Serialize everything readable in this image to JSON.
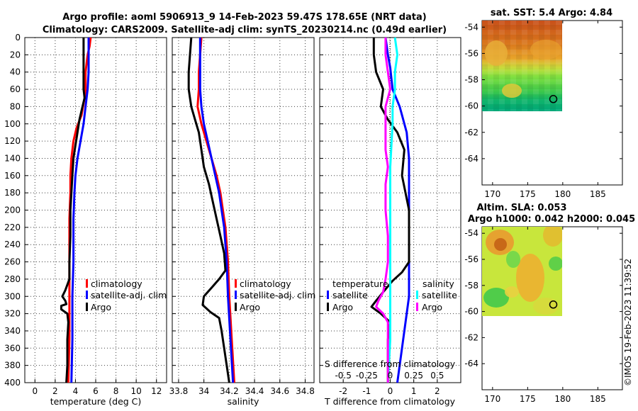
{
  "header": {
    "title_line1": "Argo profile: aoml 5906913_9 14-Feb-2023 59.47S 178.65E (NRT data)",
    "title_line2": "Climatology: CARS2009. Satellite-adj clim: synTS_20230214.nc (0.49d earlier)",
    "credit": "©IMOS 19-Feb-2023 11:39:52"
  },
  "colors": {
    "climatology": "#ff0000",
    "satellite": "#0000ff",
    "argo": "#000000",
    "salinity_satellite": "#00ffff",
    "salinity_argo": "#ff00ff"
  },
  "chart_data": [
    {
      "id": "temperature",
      "type": "line",
      "xlabel": "temperature (deg C)",
      "ylabel": "",
      "xlim": [
        -1,
        13
      ],
      "ylim": [
        400,
        0
      ],
      "xticks": [
        "0",
        "2",
        "4",
        "6",
        "8",
        "10",
        "12"
      ],
      "xtick_values": [
        0,
        2,
        4,
        6,
        8,
        10,
        12
      ],
      "yticks": [
        "0",
        "20",
        "40",
        "60",
        "80",
        "100",
        "120",
        "140",
        "160",
        "180",
        "200",
        "220",
        "240",
        "260",
        "280",
        "300",
        "320",
        "340",
        "360",
        "380",
        "400"
      ],
      "legend": [
        "climatology",
        "satellite-adj. clim",
        "Argo"
      ],
      "series": [
        {
          "name": "climatology",
          "color": "#ff0000",
          "points": [
            [
              5.5,
              0
            ],
            [
              5.4,
              10
            ],
            [
              5.2,
              20
            ],
            [
              5.0,
              40
            ],
            [
              5.0,
              60
            ],
            [
              4.9,
              70
            ],
            [
              4.6,
              90
            ],
            [
              4.1,
              105
            ],
            [
              3.8,
              120
            ],
            [
              3.6,
              140
            ],
            [
              3.5,
              160
            ],
            [
              3.5,
              180
            ],
            [
              3.4,
              210
            ],
            [
              3.4,
              260
            ],
            [
              3.4,
              300
            ],
            [
              3.4,
              350
            ],
            [
              3.3,
              400
            ]
          ]
        },
        {
          "name": "satellite-adj. clim",
          "color": "#0000ff",
          "points": [
            [
              5.3,
              0
            ],
            [
              5.3,
              20
            ],
            [
              5.3,
              40
            ],
            [
              5.2,
              60
            ],
            [
              5.0,
              80
            ],
            [
              4.8,
              100
            ],
            [
              4.5,
              120
            ],
            [
              4.2,
              140
            ],
            [
              4.0,
              160
            ],
            [
              3.9,
              180
            ],
            [
              3.8,
              210
            ],
            [
              3.8,
              260
            ],
            [
              3.7,
              300
            ],
            [
              3.7,
              350
            ],
            [
              3.6,
              400
            ]
          ]
        },
        {
          "name": "Argo",
          "color": "#000000",
          "points": [
            [
              4.8,
              0
            ],
            [
              4.8,
              20
            ],
            [
              4.8,
              40
            ],
            [
              4.8,
              60
            ],
            [
              4.9,
              70
            ],
            [
              4.7,
              80
            ],
            [
              4.4,
              95
            ],
            [
              4.2,
              110
            ],
            [
              4.0,
              125
            ],
            [
              3.8,
              140
            ],
            [
              3.7,
              160
            ],
            [
              3.6,
              180
            ],
            [
              3.5,
              200
            ],
            [
              3.5,
              230
            ],
            [
              3.4,
              260
            ],
            [
              3.4,
              280
            ],
            [
              3.0,
              293
            ],
            [
              2.7,
              300
            ],
            [
              3.0,
              305
            ],
            [
              3.1,
              309
            ],
            [
              2.6,
              311
            ],
            [
              2.6,
              315
            ],
            [
              3.2,
              320
            ],
            [
              3.3,
              330
            ],
            [
              3.2,
              350
            ],
            [
              3.2,
              380
            ],
            [
              3.1,
              400
            ]
          ]
        }
      ]
    },
    {
      "id": "salinity",
      "type": "line",
      "xlabel": "salinity",
      "xlim": [
        33.75,
        34.87
      ],
      "ylim": [
        400,
        0
      ],
      "xticks": [
        "33.8",
        "34",
        "34.2",
        "34.4",
        "34.6",
        "34.8"
      ],
      "xtick_values": [
        33.8,
        34.0,
        34.2,
        34.4,
        34.6,
        34.8
      ],
      "legend": [
        "climatology",
        "satellite-adj. clim",
        "Argo"
      ],
      "series": [
        {
          "name": "climatology",
          "color": "#ff0000",
          "points": [
            [
              33.98,
              0
            ],
            [
              33.97,
              20
            ],
            [
              33.96,
              40
            ],
            [
              33.96,
              60
            ],
            [
              33.95,
              80
            ],
            [
              33.98,
              100
            ],
            [
              34.02,
              120
            ],
            [
              34.06,
              140
            ],
            [
              34.1,
              160
            ],
            [
              34.13,
              180
            ],
            [
              34.15,
              200
            ],
            [
              34.17,
              220
            ],
            [
              34.18,
              240
            ],
            [
              34.19,
              260
            ],
            [
              34.2,
              300
            ],
            [
              34.22,
              350
            ],
            [
              34.24,
              400
            ]
          ]
        },
        {
          "name": "satellite-adj. clim",
          "color": "#0000ff",
          "points": [
            [
              33.97,
              0
            ],
            [
              33.97,
              40
            ],
            [
              33.97,
              60
            ],
            [
              33.98,
              80
            ],
            [
              34.0,
              100
            ],
            [
              34.03,
              120
            ],
            [
              34.06,
              140
            ],
            [
              34.09,
              160
            ],
            [
              34.12,
              180
            ],
            [
              34.14,
              200
            ],
            [
              34.16,
              220
            ],
            [
              34.17,
              240
            ],
            [
              34.18,
              260
            ],
            [
              34.19,
              300
            ],
            [
              34.21,
              350
            ],
            [
              34.23,
              400
            ]
          ]
        },
        {
          "name": "Argo",
          "color": "#000000",
          "points": [
            [
              33.9,
              0
            ],
            [
              33.89,
              20
            ],
            [
              33.88,
              40
            ],
            [
              33.88,
              60
            ],
            [
              33.9,
              80
            ],
            [
              33.93,
              95
            ],
            [
              33.96,
              110
            ],
            [
              33.98,
              130
            ],
            [
              34.0,
              150
            ],
            [
              34.04,
              170
            ],
            [
              34.07,
              190
            ],
            [
              34.1,
              210
            ],
            [
              34.13,
              230
            ],
            [
              34.16,
              250
            ],
            [
              34.17,
              270
            ],
            [
              34.12,
              280
            ],
            [
              34.06,
              290
            ],
            [
              34.0,
              300
            ],
            [
              33.99,
              310
            ],
            [
              34.05,
              318
            ],
            [
              34.12,
              325
            ],
            [
              34.14,
              340
            ],
            [
              34.16,
              360
            ],
            [
              34.18,
              380
            ],
            [
              34.2,
              400
            ]
          ]
        }
      ]
    },
    {
      "id": "difference",
      "type": "line",
      "xlabel": "T difference from climatology",
      "top_axis_label": "S difference from climatology",
      "xlim": [
        -3,
        3
      ],
      "ylim": [
        400,
        0
      ],
      "xticks": [
        "-2",
        "-1",
        "0",
        "1",
        "2"
      ],
      "xtick_values": [
        -2,
        -1,
        0,
        1,
        2
      ],
      "sticks": [
        "-0.5",
        "-0.25",
        "0",
        "0.25",
        "0.5"
      ],
      "stick_values": [
        -2,
        -1,
        0,
        1,
        2
      ],
      "legend_groups": [
        {
          "title": "temperature",
          "items": [
            "satellite",
            "Argo"
          ]
        },
        {
          "title": "salinity",
          "items": [
            "satellite",
            "Argo"
          ]
        }
      ],
      "series": [
        {
          "name": "temperature satellite",
          "color": "#0000ff",
          "points": [
            [
              -0.2,
              0
            ],
            [
              -0.1,
              20
            ],
            [
              0.0,
              35
            ],
            [
              0.1,
              60
            ],
            [
              0.4,
              80
            ],
            [
              0.7,
              110
            ],
            [
              0.8,
              140
            ],
            [
              0.8,
              180
            ],
            [
              0.8,
              220
            ],
            [
              0.8,
              260
            ],
            [
              0.8,
              300
            ],
            [
              0.6,
              340
            ],
            [
              0.4,
              380
            ],
            [
              0.3,
              400
            ]
          ]
        },
        {
          "name": "temperature Argo",
          "color": "#000000",
          "points": [
            [
              -0.7,
              0
            ],
            [
              -0.7,
              20
            ],
            [
              -0.6,
              40
            ],
            [
              -0.3,
              60
            ],
            [
              -0.4,
              80
            ],
            [
              -0.1,
              95
            ],
            [
              0.3,
              110
            ],
            [
              0.6,
              130
            ],
            [
              0.5,
              160
            ],
            [
              0.8,
              200
            ],
            [
              0.8,
              240
            ],
            [
              0.8,
              260
            ],
            [
              0.5,
              272
            ],
            [
              0.1,
              282
            ],
            [
              -0.3,
              295
            ],
            [
              -0.6,
              305
            ],
            [
              -0.8,
              312
            ],
            [
              -0.4,
              320
            ],
            [
              0.0,
              330
            ],
            [
              -0.1,
              350
            ],
            [
              -0.1,
              380
            ],
            [
              -0.1,
              400
            ]
          ]
        },
        {
          "name": "salinity satellite",
          "color": "#00ffff",
          "points": [
            [
              0.2,
              0
            ],
            [
              0.3,
              20
            ],
            [
              0.2,
              40
            ],
            [
              0.2,
              60
            ],
            [
              0.1,
              80
            ],
            [
              0.1,
              100
            ],
            [
              0.0,
              150
            ],
            [
              0.0,
              200
            ],
            [
              0.0,
              250
            ],
            [
              0.0,
              300
            ],
            [
              0.0,
              350
            ],
            [
              -0.1,
              400
            ]
          ]
        },
        {
          "name": "salinity Argo",
          "color": "#ff00ff",
          "points": [
            [
              -0.2,
              0
            ],
            [
              -0.2,
              20
            ],
            [
              -0.1,
              40
            ],
            [
              0.0,
              60
            ],
            [
              -0.2,
              80
            ],
            [
              -0.2,
              100
            ],
            [
              -0.2,
              130
            ],
            [
              -0.1,
              150
            ],
            [
              -0.2,
              170
            ],
            [
              -0.2,
              200
            ],
            [
              -0.1,
              230
            ],
            [
              -0.1,
              260
            ],
            [
              -0.2,
              280
            ],
            [
              -0.3,
              295
            ],
            [
              -0.5,
              305
            ],
            [
              -0.6,
              312
            ],
            [
              -0.3,
              320
            ],
            [
              -0.1,
              330
            ],
            [
              -0.1,
              360
            ],
            [
              -0.1,
              400
            ]
          ]
        }
      ]
    },
    {
      "id": "sst_map",
      "type": "heatmap",
      "title": "sat. SST: 5.4 Argo: 4.84",
      "xticks": [
        "170",
        "175",
        "180",
        "185"
      ],
      "xtick_values": [
        170,
        175,
        180,
        185
      ],
      "yticks": [
        "-54",
        "-56",
        "-58",
        "-60",
        "-62",
        "-64"
      ],
      "ytick_values": [
        -54,
        -56,
        -58,
        -60,
        -62,
        -64
      ],
      "xlim": [
        168.5,
        188.5
      ],
      "ylim": [
        -66,
        -53.5
      ],
      "argo_position": [
        178.65,
        -59.47
      ]
    },
    {
      "id": "sla_map",
      "type": "heatmap",
      "title_line1": "Altim. SLA: 0.053",
      "title_line2": "Argo h1000: 0.042 h2000: 0.045",
      "xticks": [
        "170",
        "175",
        "180",
        "185"
      ],
      "xtick_values": [
        170,
        175,
        180,
        185
      ],
      "yticks": [
        "-54",
        "-56",
        "-58",
        "-60",
        "-62",
        "-64"
      ],
      "ytick_values": [
        -54,
        -56,
        -58,
        -60,
        -62,
        -64
      ],
      "xlim": [
        168.5,
        188.5
      ],
      "ylim": [
        -66,
        -53.5
      ],
      "argo_position": [
        178.65,
        -59.47
      ]
    }
  ]
}
